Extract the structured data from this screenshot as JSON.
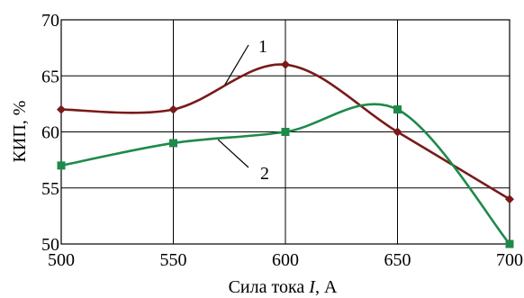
{
  "chart_data": {
    "type": "line",
    "x": [
      500,
      550,
      600,
      650,
      700
    ],
    "xlim": [
      500,
      700
    ],
    "ylim": [
      50,
      70
    ],
    "x_ticks": [
      500,
      550,
      600,
      650,
      700
    ],
    "y_ticks": [
      50,
      55,
      60,
      65,
      70
    ],
    "xlabel": "Сила тока I, А",
    "xlabel_prefix": "Сила тока ",
    "xlabel_var": "I",
    "xlabel_suffix": ", А",
    "ylabel": "КИП, %",
    "grid": true,
    "series": [
      {
        "name": "1",
        "color": "#7a1a1a",
        "marker": "diamond",
        "values": [
          62,
          62,
          66,
          60,
          54
        ]
      },
      {
        "name": "2",
        "color": "#1e8a4a",
        "marker": "square",
        "values": [
          57,
          59,
          60,
          62,
          50
        ]
      }
    ],
    "callouts": [
      {
        "label": "1",
        "series": "1"
      },
      {
        "label": "2",
        "series": "2"
      }
    ]
  }
}
